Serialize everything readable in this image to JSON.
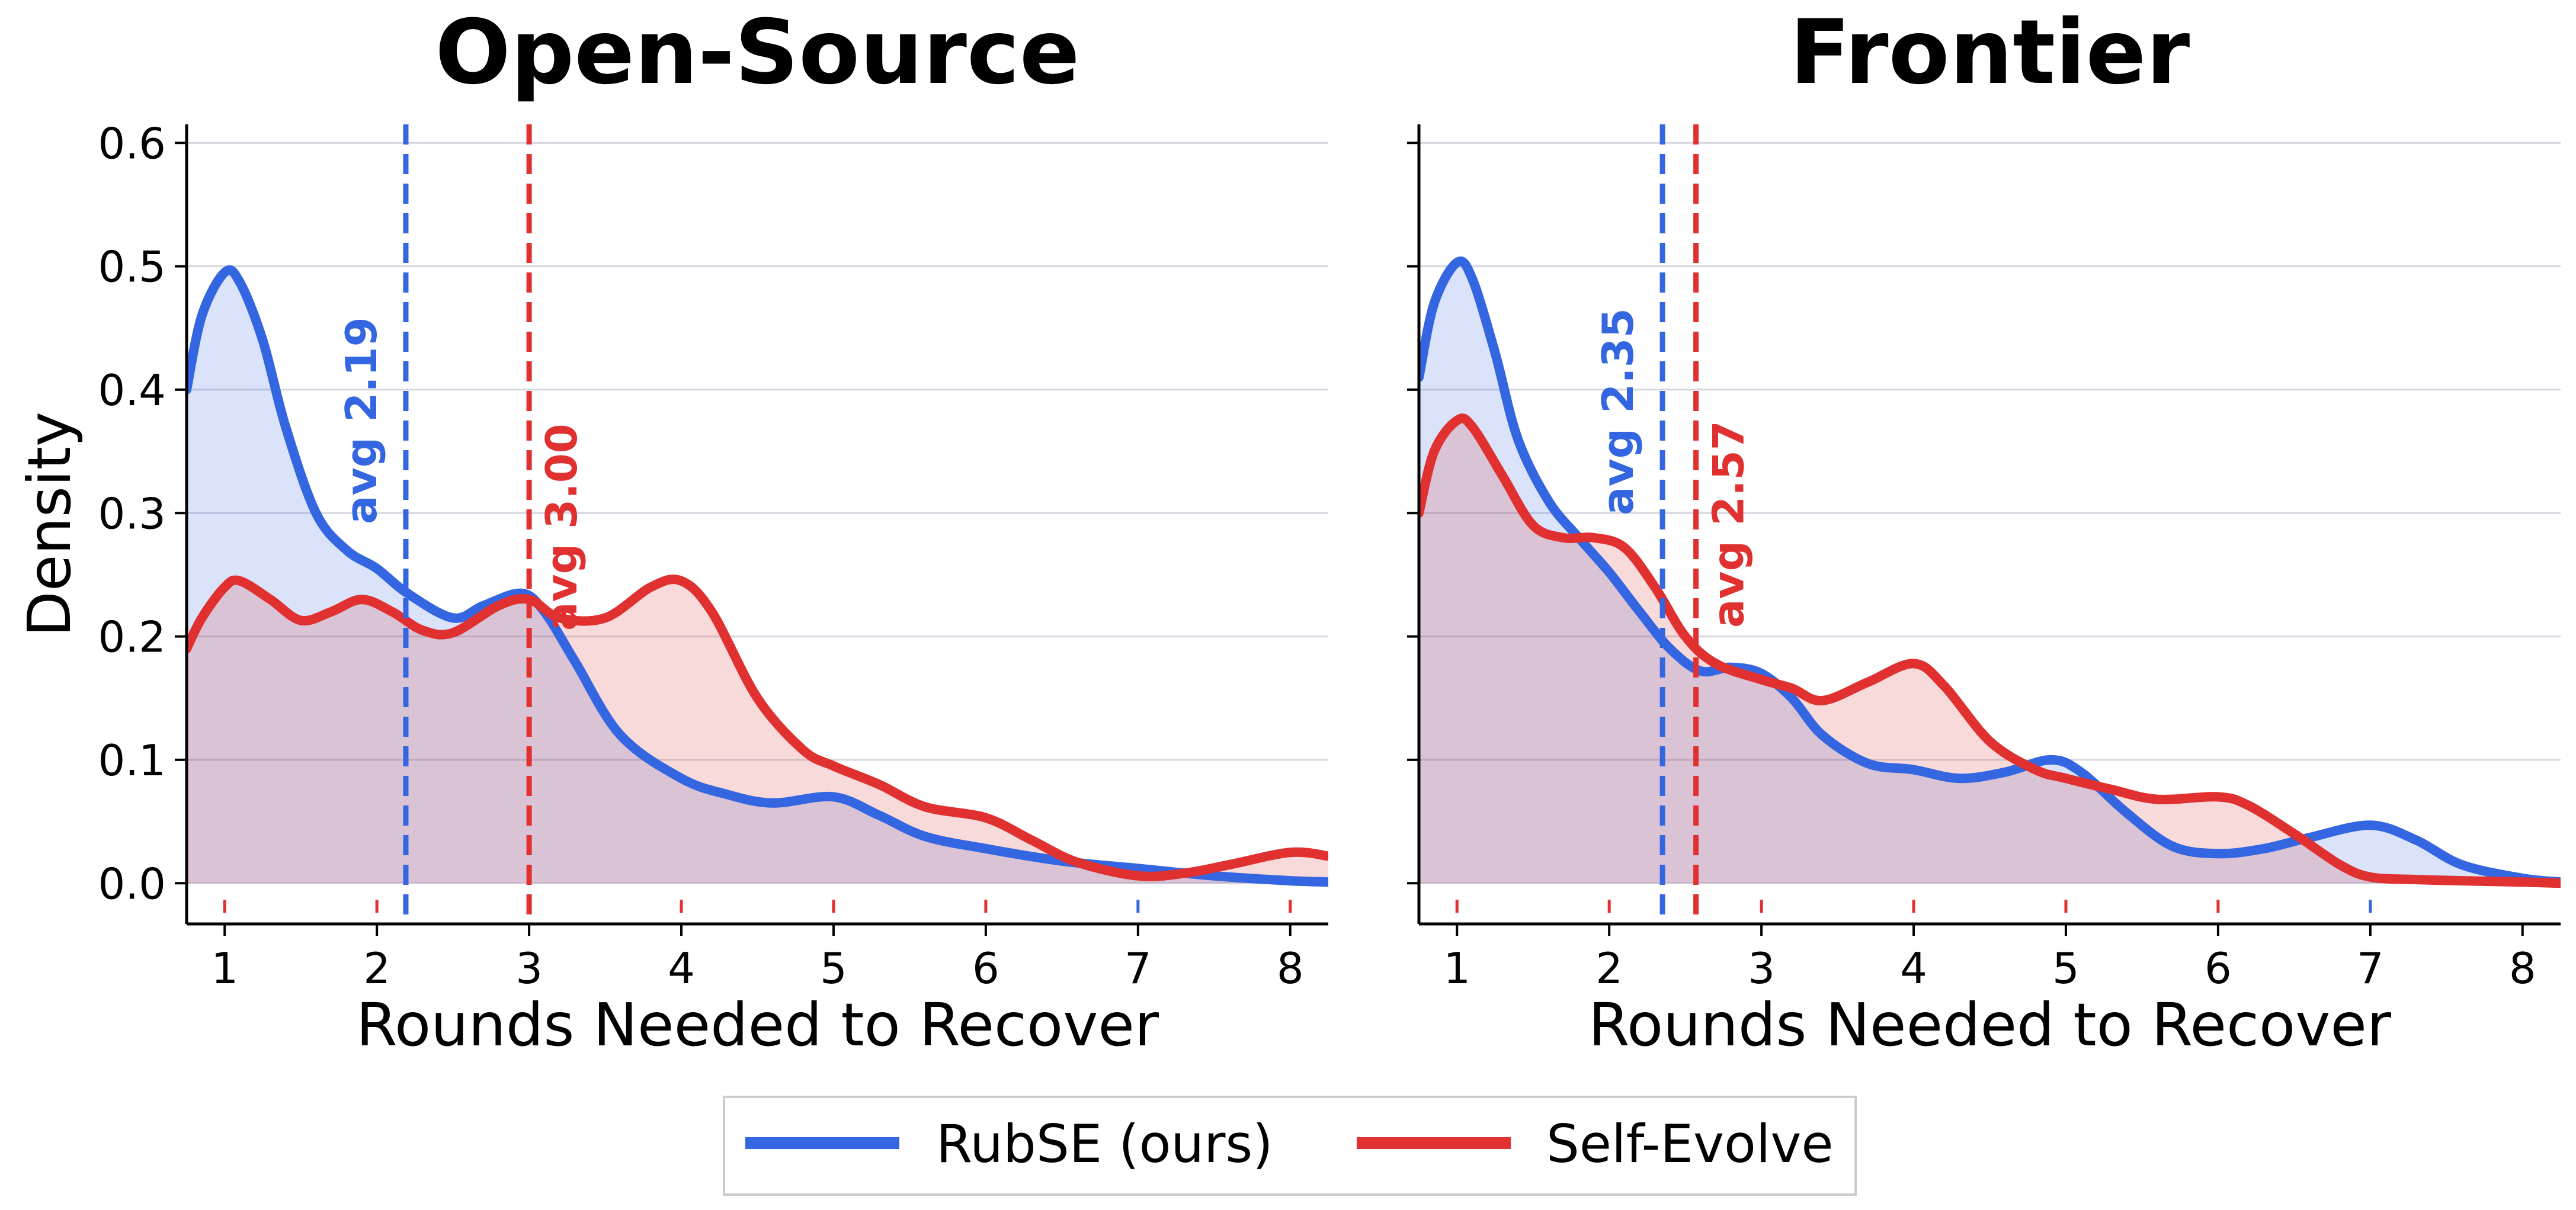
{
  "legend": {
    "items": [
      {
        "label": "RubSE (ours)",
        "color": "#3366e0"
      },
      {
        "label": "Self-Evolve",
        "color": "#e03030"
      }
    ],
    "placement": "bottom-center"
  },
  "chart_data": [
    {
      "type": "area",
      "title": "Open-Source",
      "xlabel": "Rounds Needed to Recover",
      "ylabel": "Density",
      "xlim": [
        0.75,
        8.25
      ],
      "ylim": [
        -0.033,
        0.615
      ],
      "x_ticks": [
        "1",
        "2",
        "3",
        "4",
        "5",
        "6",
        "7",
        "8"
      ],
      "y_ticks": [
        "0.0",
        "0.1",
        "0.2",
        "0.3",
        "0.4",
        "0.5",
        "0.6"
      ],
      "grid": "horizontal",
      "series": [
        {
          "name": "RubSE (ours)",
          "color": "#3366e0",
          "x": [
            0.75,
            0.85,
            1.0,
            1.1,
            1.25,
            1.4,
            1.6,
            1.8,
            2.0,
            2.2,
            2.5,
            2.7,
            2.95,
            3.1,
            3.3,
            3.6,
            4.0,
            4.3,
            4.6,
            5.0,
            5.3,
            5.6,
            6.0,
            6.5,
            7.0,
            7.5,
            8.0,
            8.25
          ],
          "y": [
            0.4,
            0.46,
            0.495,
            0.487,
            0.44,
            0.37,
            0.3,
            0.27,
            0.255,
            0.235,
            0.215,
            0.225,
            0.235,
            0.22,
            0.18,
            0.12,
            0.085,
            0.072,
            0.065,
            0.07,
            0.055,
            0.038,
            0.028,
            0.018,
            0.012,
            0.006,
            0.002,
            0.001
          ]
        },
        {
          "name": "Self-Evolve",
          "color": "#e03030",
          "x": [
            0.75,
            0.85,
            1.0,
            1.1,
            1.3,
            1.5,
            1.7,
            1.9,
            2.1,
            2.3,
            2.5,
            2.8,
            3.0,
            3.2,
            3.5,
            3.8,
            4.0,
            4.2,
            4.5,
            4.8,
            5.0,
            5.3,
            5.6,
            6.0,
            6.3,
            6.6,
            7.0,
            7.3,
            7.6,
            8.0,
            8.25
          ],
          "y": [
            0.19,
            0.215,
            0.24,
            0.245,
            0.23,
            0.213,
            0.22,
            0.23,
            0.22,
            0.205,
            0.203,
            0.225,
            0.23,
            0.215,
            0.215,
            0.24,
            0.245,
            0.22,
            0.15,
            0.108,
            0.095,
            0.08,
            0.062,
            0.053,
            0.035,
            0.017,
            0.006,
            0.008,
            0.015,
            0.025,
            0.022
          ]
        }
      ],
      "averages": [
        {
          "series": "RubSE (ours)",
          "value": 2.19,
          "label": "avg 2.19",
          "color": "#3366e0"
        },
        {
          "series": "Self-Evolve",
          "value": 3.0,
          "label": "avg 3.00",
          "color": "#e03030"
        }
      ],
      "rug": [
        {
          "x": 1,
          "color": "#e03030"
        },
        {
          "x": 2,
          "color": "#e03030"
        },
        {
          "x": 3,
          "color": "#e03030"
        },
        {
          "x": 4,
          "color": "#e03030"
        },
        {
          "x": 5,
          "color": "#e03030"
        },
        {
          "x": 6,
          "color": "#e03030"
        },
        {
          "x": 7,
          "color": "#3366e0"
        },
        {
          "x": 8,
          "color": "#e03030"
        }
      ]
    },
    {
      "type": "area",
      "title": "Frontier",
      "xlabel": "Rounds Needed to Recover",
      "ylabel": "",
      "xlim": [
        0.75,
        8.25
      ],
      "ylim": [
        -0.033,
        0.615
      ],
      "x_ticks": [
        "1",
        "2",
        "3",
        "4",
        "5",
        "6",
        "7",
        "8"
      ],
      "y_ticks": [
        "",
        "",
        "",
        "",
        "",
        "",
        ""
      ],
      "grid": "horizontal",
      "series": [
        {
          "name": "RubSE (ours)",
          "color": "#3366e0",
          "x": [
            0.75,
            0.85,
            1.0,
            1.1,
            1.25,
            1.4,
            1.6,
            1.8,
            2.0,
            2.2,
            2.4,
            2.6,
            2.8,
            3.0,
            3.2,
            3.4,
            3.7,
            4.0,
            4.3,
            4.6,
            4.9,
            5.1,
            5.4,
            5.7,
            6.0,
            6.3,
            6.6,
            7.0,
            7.3,
            7.6,
            8.0,
            8.25
          ],
          "y": [
            0.41,
            0.47,
            0.503,
            0.49,
            0.43,
            0.36,
            0.31,
            0.28,
            0.252,
            0.22,
            0.19,
            0.172,
            0.175,
            0.17,
            0.15,
            0.12,
            0.097,
            0.092,
            0.085,
            0.09,
            0.1,
            0.09,
            0.057,
            0.03,
            0.024,
            0.028,
            0.037,
            0.047,
            0.035,
            0.015,
            0.004,
            0.001
          ]
        },
        {
          "name": "Self-Evolve",
          "color": "#e03030",
          "x": [
            0.75,
            0.85,
            1.0,
            1.1,
            1.3,
            1.5,
            1.7,
            1.9,
            2.1,
            2.3,
            2.5,
            2.7,
            3.0,
            3.2,
            3.4,
            3.7,
            4.0,
            4.2,
            4.5,
            4.8,
            5.0,
            5.3,
            5.6,
            6.0,
            6.2,
            6.5,
            6.8,
            7.0,
            7.3,
            7.6,
            8.0,
            8.25
          ],
          "y": [
            0.3,
            0.35,
            0.375,
            0.37,
            0.33,
            0.29,
            0.28,
            0.28,
            0.272,
            0.24,
            0.2,
            0.178,
            0.165,
            0.158,
            0.148,
            0.163,
            0.178,
            0.16,
            0.115,
            0.092,
            0.085,
            0.076,
            0.068,
            0.07,
            0.063,
            0.04,
            0.015,
            0.005,
            0.003,
            0.002,
            0.001,
            0.0
          ]
        }
      ],
      "averages": [
        {
          "series": "RubSE (ours)",
          "value": 2.35,
          "label": "avg 2.35",
          "color": "#3366e0"
        },
        {
          "series": "Self-Evolve",
          "value": 2.57,
          "label": "avg 2.57",
          "color": "#e03030"
        }
      ],
      "rug": [
        {
          "x": 1,
          "color": "#e03030"
        },
        {
          "x": 2,
          "color": "#e03030"
        },
        {
          "x": 3,
          "color": "#e03030"
        },
        {
          "x": 4,
          "color": "#e03030"
        },
        {
          "x": 5,
          "color": "#e03030"
        },
        {
          "x": 6,
          "color": "#e03030"
        },
        {
          "x": 7,
          "color": "#3366e0"
        }
      ]
    }
  ]
}
